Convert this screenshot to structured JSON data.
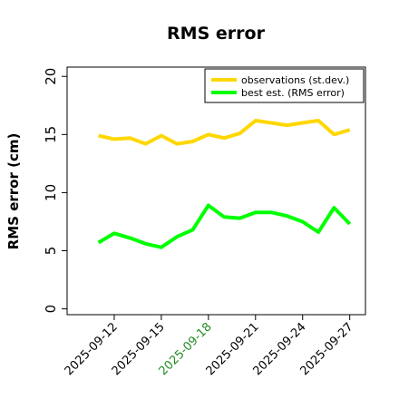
{
  "chart_data": {
    "type": "line",
    "title": "RMS error",
    "xlabel": "",
    "ylabel": "RMS error (cm)",
    "ylim": [
      -0.5,
      20.8
    ],
    "yticks": [
      0,
      5,
      10,
      15,
      20
    ],
    "xticks": [
      "2025-09-12",
      "2025-09-15",
      "2025-09-18",
      "2025-09-21",
      "2025-09-24",
      "2025-09-27"
    ],
    "highlight_tick": "2025-09-18",
    "highlight_color": "#228b22",
    "x": [
      "2025-09-11",
      "2025-09-12",
      "2025-09-13",
      "2025-09-14",
      "2025-09-15",
      "2025-09-16",
      "2025-09-17",
      "2025-09-18",
      "2025-09-19",
      "2025-09-20",
      "2025-09-21",
      "2025-09-22",
      "2025-09-23",
      "2025-09-24",
      "2025-09-25",
      "2025-09-26",
      "2025-09-27"
    ],
    "series": [
      {
        "name": "observations (st.dev.)",
        "color": "#ffd700",
        "values": [
          14.9,
          14.6,
          14.7,
          14.2,
          14.9,
          14.2,
          14.4,
          15.0,
          14.7,
          15.1,
          16.2,
          16.0,
          15.8,
          16.0,
          16.2,
          15.0,
          15.4
        ]
      },
      {
        "name": "best est. (RMS error)",
        "color": "#00ff00",
        "values": [
          5.7,
          6.5,
          6.1,
          5.6,
          5.3,
          6.2,
          6.8,
          8.9,
          7.9,
          7.8,
          8.3,
          8.3,
          8.0,
          7.5,
          6.6,
          8.7,
          7.3
        ]
      }
    ],
    "legend": "top-right",
    "grid": false
  }
}
